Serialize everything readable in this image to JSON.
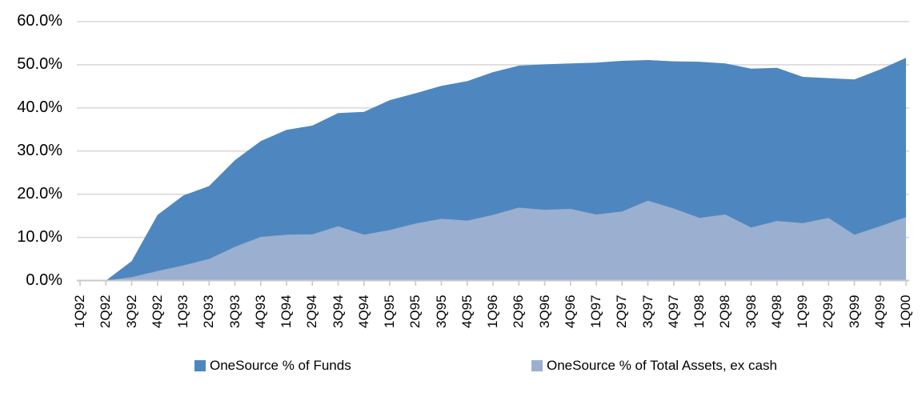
{
  "chart_data": {
    "type": "area",
    "mode": "overlapping",
    "title": "",
    "xlabel": "",
    "ylabel": "",
    "categories": [
      "1Q92",
      "2Q92",
      "3Q92",
      "4Q92",
      "1Q93",
      "2Q93",
      "3Q93",
      "4Q93",
      "1Q94",
      "2Q94",
      "3Q94",
      "4Q94",
      "1Q95",
      "2Q95",
      "3Q95",
      "4Q95",
      "1Q96",
      "2Q96",
      "3Q96",
      "4Q96",
      "1Q97",
      "2Q97",
      "3Q97",
      "4Q97",
      "1Q98",
      "2Q98",
      "3Q98",
      "4Q98",
      "1Q99",
      "2Q99",
      "3Q99",
      "4Q99",
      "1Q00"
    ],
    "series": [
      {
        "name": "OneSource % of Funds",
        "color": "#4e87c0",
        "values": [
          0,
          0,
          4.5,
          15.2,
          19.7,
          21.9,
          27.9,
          32.3,
          34.9,
          35.9,
          38.8,
          39.1,
          41.8,
          43.4,
          45.1,
          46.2,
          48.3,
          49.8,
          50.1,
          50.3,
          50.5,
          50.9,
          51.1,
          50.8,
          50.7,
          50.3,
          49.1,
          49.3,
          47.2,
          46.9,
          46.6,
          48.9,
          51.6
        ]
      },
      {
        "name": "OneSource % of Total Assets, ex cash",
        "color": "#9bafd0",
        "values": [
          0,
          0,
          0.8,
          2.2,
          3.5,
          5.0,
          7.8,
          10.1,
          10.6,
          10.7,
          12.6,
          10.6,
          11.7,
          13.2,
          14.3,
          13.9,
          15.2,
          16.9,
          16.4,
          16.6,
          15.3,
          16.0,
          18.5,
          16.7,
          14.5,
          15.3,
          12.3,
          13.8,
          13.3,
          14.5,
          10.6,
          12.6,
          14.7
        ]
      }
    ],
    "ylim": [
      0,
      60
    ],
    "y_tick_labels": [
      "0.0%",
      "10.0%",
      "20.0%",
      "30.0%",
      "40.0%",
      "50.0%",
      "60.0%"
    ],
    "grid": true,
    "legend_position": "bottom",
    "gridline_color": "#d9d9d9",
    "axis_color": "#c9c9c9",
    "tick_color": "#c9c9c9",
    "background": "#ffffff",
    "text_color": "#000000"
  }
}
